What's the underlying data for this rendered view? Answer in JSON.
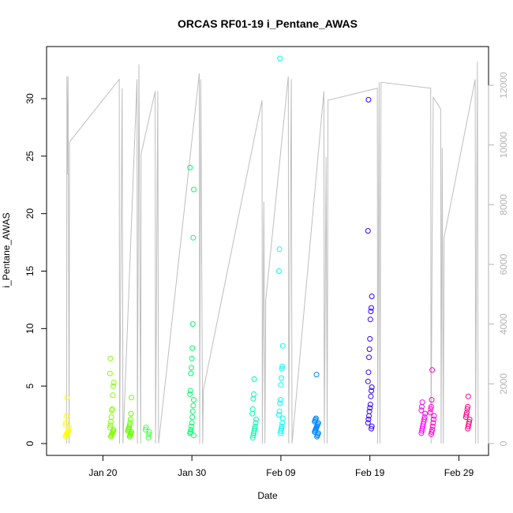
{
  "chart_data": {
    "type": "scatter",
    "title": "ORCAS RF01-19 i_Pentane_AWAS",
    "xlabel": "Date",
    "ylabel": "i_Pentane_AWAS",
    "xlim": [
      "2016-01-15",
      "2016-03-02"
    ],
    "ylim": [
      0,
      33.5
    ],
    "y2lim": [
      0,
      12900
    ],
    "x_ticks": [
      "2016-01-20",
      "2016-01-30",
      "2016-02-09",
      "2016-02-19",
      "2016-02-29"
    ],
    "x_tick_labels": [
      "Jan 20",
      "Jan 30",
      "Feb 09",
      "Feb 19",
      "Feb 29"
    ],
    "y_ticks": [
      0,
      5,
      10,
      15,
      20,
      25,
      30
    ],
    "y2_ticks": [
      0,
      2000,
      4000,
      6000,
      8000,
      10000,
      12000
    ],
    "grid": false,
    "legend": "none",
    "series": [
      {
        "color": "#ffff00",
        "x": "2016-01-16",
        "values": [
          0.6,
          0.7,
          0.8,
          0.8,
          0.9,
          1.0,
          1.1,
          1.2,
          1.4,
          1.6,
          1.8,
          2.4,
          4.0
        ]
      },
      {
        "color": "#80ff00",
        "x": "2016-01-21",
        "values": [
          0.6,
          0.7,
          0.8,
          0.9,
          1.0,
          1.1,
          1.2,
          1.4,
          1.6,
          1.9,
          2.3,
          2.9,
          3.0,
          4.2,
          5.0,
          5.3,
          6.1,
          7.4
        ]
      },
      {
        "color": "#66ff00",
        "x": "2016-01-23",
        "values": [
          0.6,
          0.7,
          0.8,
          0.9,
          1.0,
          1.1,
          1.2,
          1.3,
          1.4,
          1.6,
          1.8,
          2.1,
          2.6,
          4.0
        ]
      },
      {
        "color": "#40ff40",
        "x": "2016-01-25",
        "values": [
          0.5,
          0.8,
          1.0,
          1.2,
          1.4
        ]
      },
      {
        "color": "#00ff66",
        "x": "2016-01-30",
        "values": [
          0.7,
          0.9,
          1.0,
          1.2,
          1.5,
          1.8,
          2.3,
          2.8,
          3.3,
          3.8,
          4.3,
          4.6,
          6.1,
          6.6,
          7.4,
          8.3,
          10.4,
          17.9,
          22.1,
          24.0
        ]
      },
      {
        "color": "#00ffaa",
        "x": "2016-02-06",
        "values": [
          0.5,
          0.7,
          0.9,
          1.1,
          1.3,
          1.5,
          1.8,
          2.1,
          2.6,
          3.0,
          3.9,
          4.3,
          5.6
        ]
      },
      {
        "color": "#00ffee",
        "x": "2016-02-09",
        "values": [
          0.9,
          1.1,
          1.3,
          1.5,
          1.8,
          2.2,
          2.5,
          2.8,
          3.5,
          3.8,
          5.1,
          5.7,
          6.5,
          6.7,
          8.5,
          15.0,
          16.9,
          33.5
        ]
      },
      {
        "color": "#0088ff",
        "x": "2016-02-13",
        "values": [
          0.6,
          0.7,
          0.8,
          0.9,
          1.0,
          1.1,
          1.2,
          1.3,
          1.4,
          1.5,
          1.6,
          1.7,
          1.8,
          1.9,
          2.0,
          2.1,
          2.2,
          6.0
        ]
      },
      {
        "color": "#3300ff",
        "x": "2016-02-19",
        "values": [
          1.3,
          1.5,
          1.8,
          2.1,
          2.4,
          2.8,
          3.1,
          3.4,
          4.1,
          4.6,
          4.9,
          5.4,
          6.2,
          7.5,
          8.2,
          9.1,
          10.8,
          11.5,
          11.8,
          12.8,
          18.5,
          29.9
        ]
      },
      {
        "color": "#ff00ff",
        "x": "2016-02-25",
        "values": [
          0.9,
          1.1,
          1.3,
          1.5,
          1.7,
          1.9,
          2.1,
          2.3,
          2.6,
          2.9,
          3.2,
          3.6
        ]
      },
      {
        "color": "#ff00cc",
        "x": "2016-02-26",
        "values": [
          0.8,
          1.0,
          1.2,
          1.5,
          1.8,
          2.1,
          2.4,
          2.7,
          3.0,
          3.2,
          3.8,
          6.4
        ]
      },
      {
        "color": "#ff0080",
        "x": "2016-03-01",
        "values": [
          1.3,
          1.5,
          1.7,
          1.9,
          2.1,
          2.3,
          2.5,
          2.7,
          3.0,
          3.2,
          4.1
        ]
      }
    ],
    "altitude_line": {
      "color": "#bebebe",
      "axis": "right",
      "points": [
        [
          "2016-01-15T22:00",
          0
        ],
        [
          "2016-01-15T23:00",
          12300
        ],
        [
          "2016-01-16T00:00",
          9000
        ],
        [
          "2016-01-16T02:00",
          12300
        ],
        [
          "2016-01-16T05:00",
          0
        ],
        [
          "2016-01-16T06:00",
          10100
        ],
        [
          "2016-01-21T20:00",
          12200
        ],
        [
          "2016-01-21T21:00",
          0
        ],
        [
          "2016-01-22T01:00",
          7000
        ],
        [
          "2016-01-22T04:00",
          11900
        ],
        [
          "2016-01-22T06:00",
          0
        ],
        [
          "2016-01-23T20:00",
          12200
        ],
        [
          "2016-01-23T21:00",
          0
        ],
        [
          "2016-01-24T01:00",
          12700
        ],
        [
          "2016-01-24T06:00",
          0
        ],
        [
          "2016-01-24T07:00",
          9700
        ],
        [
          "2016-01-25T21:00",
          11800
        ],
        [
          "2016-01-25T22:00",
          0
        ],
        [
          "2016-01-26T04:00",
          11800
        ],
        [
          "2016-01-26T06:00",
          0
        ],
        [
          "2016-01-30T20:00",
          12400
        ],
        [
          "2016-01-30T21:00",
          0
        ],
        [
          "2016-01-31T00:00",
          12200
        ],
        [
          "2016-01-31T05:00",
          0
        ],
        [
          "2016-01-31T07:00",
          1800
        ],
        [
          "2016-02-06T21:00",
          11500
        ],
        [
          "2016-02-06T22:00",
          0
        ],
        [
          "2016-02-07T02:00",
          8100
        ],
        [
          "2016-02-07T05:00",
          0
        ],
        [
          "2016-02-07T07:00",
          4800
        ],
        [
          "2016-02-09T20:00",
          12300
        ],
        [
          "2016-02-09T21:00",
          0
        ],
        [
          "2016-02-10T04:00",
          12200
        ],
        [
          "2016-02-10T06:00",
          0
        ],
        [
          "2016-02-13T20:00",
          11800
        ],
        [
          "2016-02-13T21:00",
          0
        ],
        [
          "2016-02-14T02:00",
          9600
        ],
        [
          "2016-02-14T05:00",
          0
        ],
        [
          "2016-02-14T07:00",
          11500
        ],
        [
          "2016-02-19T20:00",
          11900
        ],
        [
          "2016-02-19T21:00",
          0
        ],
        [
          "2016-02-20T01:00",
          12100
        ],
        [
          "2016-02-20T03:00",
          0
        ],
        [
          "2016-02-20T06:00",
          12100
        ],
        [
          "2016-02-25T20:00",
          11900
        ],
        [
          "2016-02-25T21:00",
          0
        ],
        [
          "2016-02-26T00:00",
          6900
        ],
        [
          "2016-02-26T03:00",
          11600
        ],
        [
          "2016-02-26T23:00",
          11200
        ],
        [
          "2016-02-27T00:00",
          0
        ],
        [
          "2016-02-27T03:00",
          9900
        ],
        [
          "2016-02-27T06:00",
          0
        ],
        [
          "2016-02-27T08:00",
          6900
        ],
        [
          "2016-03-01T20:00",
          12200
        ],
        [
          "2016-03-01T21:00",
          0
        ],
        [
          "2016-03-02T02:00",
          12800
        ],
        [
          "2016-03-02T04:00",
          0
        ]
      ]
    }
  }
}
